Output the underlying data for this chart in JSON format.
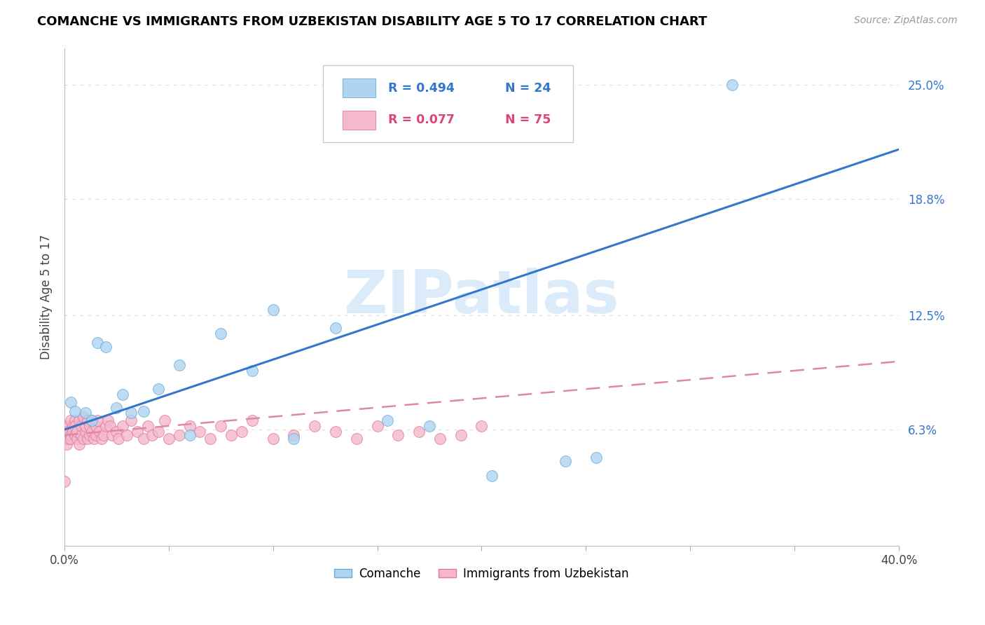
{
  "title": "COMANCHE VS IMMIGRANTS FROM UZBEKISTAN DISABILITY AGE 5 TO 17 CORRELATION CHART",
  "source": "Source: ZipAtlas.com",
  "ylabel": "Disability Age 5 to 17",
  "xlim": [
    0.0,
    0.4
  ],
  "ylim": [
    0.0,
    0.27
  ],
  "xtick_vals": [
    0.0,
    0.05,
    0.1,
    0.15,
    0.2,
    0.25,
    0.3,
    0.35,
    0.4
  ],
  "ytick_right_labels": [
    "6.3%",
    "12.5%",
    "18.8%",
    "25.0%"
  ],
  "ytick_right_values": [
    0.063,
    0.125,
    0.188,
    0.25
  ],
  "watermark": "ZIPatlas",
  "watermark_color": "#c5dff5",
  "comanche_color": "#aed4f0",
  "comanche_edge": "#6aaad8",
  "uzbekistan_color": "#f5b8cc",
  "uzbekistan_edge": "#e07898",
  "comanche_R": 0.494,
  "comanche_N": 24,
  "uzbekistan_R": 0.077,
  "uzbekistan_N": 75,
  "trendline_blue": "#3377cc",
  "trendline_pink": "#dd88aa",
  "grid_color": "#dddddd",
  "legend_box_edge": "#cccccc",
  "bg_color": "#ffffff",
  "blue_line_x0": 0.0,
  "blue_line_y0": 0.063,
  "blue_line_x1": 0.4,
  "blue_line_y1": 0.215,
  "pink_line_x0": 0.0,
  "pink_line_y0": 0.06,
  "pink_line_x1": 0.4,
  "pink_line_y1": 0.1,
  "comanche_x": [
    0.003,
    0.005,
    0.01,
    0.013,
    0.016,
    0.02,
    0.025,
    0.028,
    0.032,
    0.038,
    0.045,
    0.055,
    0.06,
    0.075,
    0.09,
    0.1,
    0.11,
    0.13,
    0.155,
    0.175,
    0.205,
    0.24,
    0.255,
    0.32
  ],
  "comanche_y": [
    0.078,
    0.073,
    0.072,
    0.068,
    0.11,
    0.108,
    0.075,
    0.082,
    0.072,
    0.073,
    0.085,
    0.098,
    0.06,
    0.115,
    0.095,
    0.128,
    0.058,
    0.118,
    0.068,
    0.065,
    0.038,
    0.046,
    0.048,
    0.25
  ],
  "uzbekistan_x": [
    0.0,
    0.0,
    0.001,
    0.001,
    0.001,
    0.002,
    0.002,
    0.002,
    0.003,
    0.003,
    0.003,
    0.004,
    0.004,
    0.005,
    0.005,
    0.005,
    0.006,
    0.006,
    0.007,
    0.007,
    0.008,
    0.008,
    0.009,
    0.009,
    0.01,
    0.01,
    0.011,
    0.011,
    0.012,
    0.012,
    0.013,
    0.013,
    0.014,
    0.015,
    0.015,
    0.016,
    0.017,
    0.018,
    0.019,
    0.02,
    0.021,
    0.022,
    0.023,
    0.025,
    0.026,
    0.028,
    0.03,
    0.032,
    0.035,
    0.038,
    0.04,
    0.042,
    0.045,
    0.048,
    0.05,
    0.055,
    0.06,
    0.065,
    0.07,
    0.075,
    0.08,
    0.085,
    0.09,
    0.1,
    0.11,
    0.12,
    0.13,
    0.14,
    0.15,
    0.16,
    0.17,
    0.18,
    0.19,
    0.2,
    0.0
  ],
  "uzbekistan_y": [
    0.065,
    0.058,
    0.06,
    0.055,
    0.062,
    0.058,
    0.065,
    0.062,
    0.06,
    0.068,
    0.058,
    0.065,
    0.062,
    0.06,
    0.068,
    0.065,
    0.058,
    0.062,
    0.068,
    0.055,
    0.06,
    0.065,
    0.07,
    0.058,
    0.062,
    0.065,
    0.068,
    0.058,
    0.06,
    0.065,
    0.062,
    0.068,
    0.058,
    0.06,
    0.065,
    0.068,
    0.062,
    0.058,
    0.06,
    0.065,
    0.068,
    0.065,
    0.06,
    0.062,
    0.058,
    0.065,
    0.06,
    0.068,
    0.062,
    0.058,
    0.065,
    0.06,
    0.062,
    0.068,
    0.058,
    0.06,
    0.065,
    0.062,
    0.058,
    0.065,
    0.06,
    0.062,
    0.068,
    0.058,
    0.06,
    0.065,
    0.062,
    0.058,
    0.065,
    0.06,
    0.062,
    0.058,
    0.06,
    0.065,
    0.035
  ]
}
